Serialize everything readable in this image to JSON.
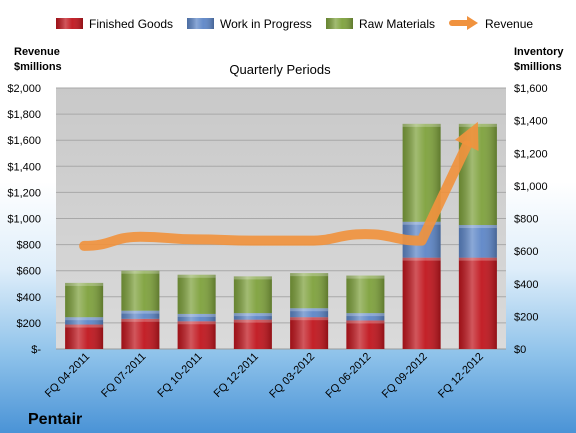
{
  "chart_data": {
    "type": "bar",
    "title": "Quarterly Periods",
    "ylabel_left": "Revenue $millions",
    "ylabel_left_lines": [
      "Revenue",
      "$millions"
    ],
    "ylabel_right": "Inventory $millions",
    "ylabel_right_lines": [
      "Inventory",
      "$millions"
    ],
    "ylim_left": [
      0,
      2000
    ],
    "ylim_right": [
      0,
      1600
    ],
    "left_ticks": [
      "$-",
      "$200",
      "$400",
      "$600",
      "$800",
      "$1,000",
      "$1,200",
      "$1,400",
      "$1,600",
      "$1,800",
      "$2,000"
    ],
    "right_ticks": [
      "$0",
      "$200",
      "$400",
      "$600",
      "$800",
      "$1,000",
      "$1,200",
      "$1,400",
      "$1,600"
    ],
    "categories": [
      "FQ 04-2011",
      "FQ 07-2011",
      "FQ 10-2011",
      "FQ 12-2011",
      "FQ 03-2012",
      "FQ 06-2012",
      "FQ 09-2012",
      "FQ 12-2012"
    ],
    "stacked_series": [
      {
        "name": "Finished Goods",
        "axis": "right",
        "color": "#c0151d",
        "values": [
          150,
          185,
          170,
          180,
          195,
          175,
          560,
          560
        ]
      },
      {
        "name": "Work in Progress",
        "axis": "right",
        "color": "#5d86c7",
        "values": [
          45,
          50,
          45,
          40,
          55,
          45,
          220,
          200
        ]
      },
      {
        "name": "Raw Materials",
        "axis": "right",
        "color": "#7ea13c",
        "values": [
          210,
          245,
          240,
          225,
          215,
          230,
          600,
          620
        ]
      }
    ],
    "line_series": [
      {
        "name": "Revenue",
        "axis": "left",
        "color": "#f0923e",
        "values": [
          790,
          860,
          840,
          830,
          830,
          880,
          830,
          1740
        ]
      }
    ],
    "grid": true,
    "legend_position": "top"
  },
  "company": "Pentair"
}
